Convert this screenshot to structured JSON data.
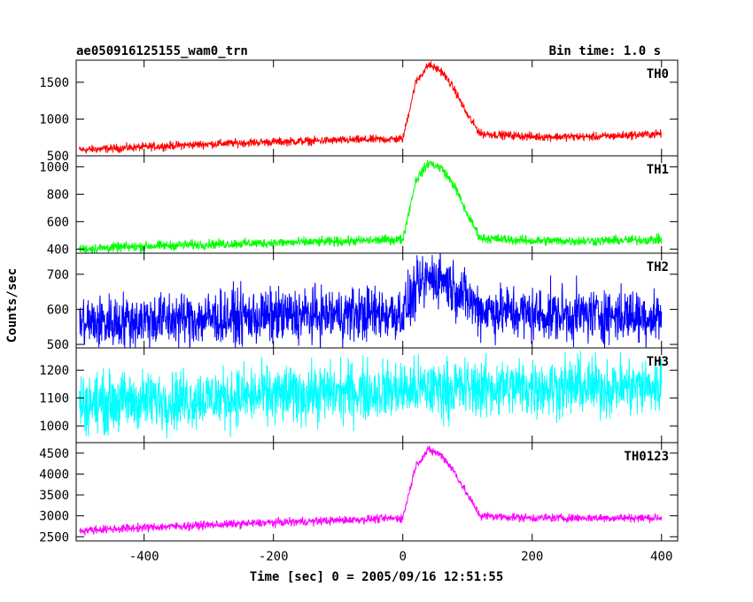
{
  "header": {
    "title": "ae050916125155_wam0_trn",
    "bin_time": "Bin time: 1.0 s"
  },
  "axes": {
    "xlabel": "Time [sec] 0 = 2005/09/16 12:51:55",
    "ylabel": "Counts/sec",
    "xlim": [
      -505,
      425
    ],
    "xticks": [
      -400,
      -200,
      0,
      200,
      400
    ]
  },
  "chart_data": {
    "type": "line",
    "x_range": [
      -500,
      400
    ],
    "title": "ae050916125155_wam0_trn",
    "xlabel": "Time [sec] 0 = 2005/09/16 12:51:55",
    "ylabel": "Counts/sec",
    "panels": [
      {
        "name": "TH0",
        "color": "#ff0000",
        "ylim": [
          500,
          1800
        ],
        "yticks": [
          500,
          1000,
          1500
        ],
        "x": [
          -500,
          -400,
          -300,
          -200,
          -100,
          0,
          20,
          40,
          60,
          80,
          100,
          120,
          200,
          300,
          400
        ],
        "values": [
          580,
          620,
          660,
          690,
          710,
          730,
          1500,
          1740,
          1650,
          1400,
          1050,
          800,
          760,
          760,
          800
        ],
        "noise": 40
      },
      {
        "name": "TH1",
        "color": "#00ff00",
        "ylim": [
          370,
          1080
        ],
        "yticks": [
          400,
          600,
          800,
          1000
        ],
        "x": [
          -500,
          -400,
          -300,
          -200,
          -100,
          0,
          20,
          40,
          60,
          80,
          100,
          120,
          200,
          300,
          400
        ],
        "values": [
          400,
          420,
          435,
          445,
          455,
          470,
          900,
          1030,
          990,
          860,
          650,
          480,
          460,
          460,
          470
        ],
        "noise": 25
      },
      {
        "name": "TH2",
        "color": "#0000ff",
        "ylim": [
          490,
          760
        ],
        "yticks": [
          500,
          600,
          700
        ],
        "x": [
          -500,
          -400,
          -300,
          -200,
          -100,
          0,
          20,
          40,
          60,
          80,
          100,
          120,
          200,
          300,
          400
        ],
        "values": [
          560,
          570,
          575,
          580,
          585,
          590,
          650,
          690,
          690,
          660,
          630,
          600,
          585,
          585,
          580
        ],
        "noise": 55
      },
      {
        "name": "TH3",
        "color": "#00ffff",
        "ylim": [
          940,
          1280
        ],
        "yticks": [
          1000,
          1100,
          1200
        ],
        "x": [
          -500,
          -400,
          -300,
          -200,
          -100,
          0,
          100,
          200,
          300,
          400
        ],
        "values": [
          1080,
          1090,
          1100,
          1110,
          1120,
          1130,
          1135,
          1140,
          1140,
          1140
        ],
        "noise": 75
      },
      {
        "name": "TH0123",
        "color": "#ff00ff",
        "ylim": [
          2400,
          4750
        ],
        "yticks": [
          2500,
          3000,
          3500,
          4000,
          4500
        ],
        "x": [
          -500,
          -400,
          -300,
          -200,
          -100,
          0,
          20,
          40,
          60,
          80,
          100,
          120,
          200,
          300,
          400
        ],
        "values": [
          2650,
          2720,
          2780,
          2840,
          2890,
          2950,
          4200,
          4580,
          4450,
          4050,
          3500,
          3000,
          2950,
          2950,
          2950
        ],
        "noise": 70
      }
    ]
  }
}
